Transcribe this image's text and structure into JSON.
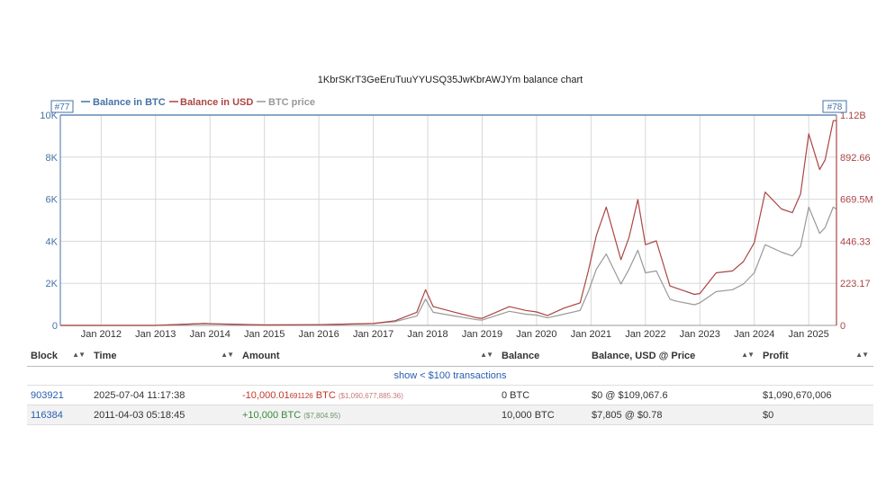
{
  "chart_data": {
    "type": "line",
    "title": "1KbrSKrT3GeEruTuuYYUSQ35JwKbrAWJYm balance chart",
    "legend": [
      "Balance in BTC",
      "Balance in USD",
      "BTC price"
    ],
    "legend_placement": "top-left",
    "grid": true,
    "x_ticks": [
      "Jan 2012",
      "Jan 2013",
      "Jan 2014",
      "Jan 2015",
      "Jan 2016",
      "Jan 2017",
      "Jan 2018",
      "Jan 2019",
      "Jan 2020",
      "Jan 2021",
      "Jan 2022",
      "Jan 2023",
      "Jan 2024",
      "Jan 2025"
    ],
    "y_left_ticks": [
      "0",
      "2K",
      "4K",
      "6K",
      "8K",
      "10K"
    ],
    "y_right_ticks": [
      "0",
      "223.17",
      "446.33",
      "669.5M",
      "892.66",
      "1.12B"
    ],
    "ylim_left": [
      0,
      10000
    ],
    "ylim_right": [
      0,
      1120000000
    ],
    "markers": {
      "start": "#77",
      "end": "#78"
    },
    "colors": {
      "btc": "#4572a7",
      "usd": "#aa4643",
      "price": "#999999"
    },
    "series": [
      {
        "name": "Balance in BTC",
        "axis": "left",
        "x": [
          2011.25,
          2025.51
        ],
        "y": [
          10000,
          10000
        ]
      },
      {
        "name": "Balance in USD",
        "axis": "right",
        "x": [
          2011.25,
          2013.0,
          2013.9,
          2014.1,
          2015.0,
          2016.0,
          2017.0,
          2017.4,
          2017.8,
          2017.96,
          2018.1,
          2018.5,
          2018.9,
          2019.0,
          2019.5,
          2019.8,
          2020.0,
          2020.2,
          2020.5,
          2020.8,
          2020.95,
          2021.1,
          2021.28,
          2021.55,
          2021.7,
          2021.86,
          2022.0,
          2022.2,
          2022.45,
          2022.55,
          2022.9,
          2023.0,
          2023.3,
          2023.6,
          2023.8,
          2024.0,
          2024.2,
          2024.5,
          2024.7,
          2024.85,
          2025.0,
          2025.2,
          2025.3,
          2025.45,
          2025.51
        ],
        "y": [
          7805,
          130000,
          10000000,
          8000000,
          2500000,
          4000000,
          10000000,
          25000000,
          70000000,
          190000000,
          100000000,
          70000000,
          40000000,
          38000000,
          100000000,
          80000000,
          72000000,
          52000000,
          92000000,
          120000000,
          290000000,
          480000000,
          630000000,
          350000000,
          470000000,
          670000000,
          430000000,
          450000000,
          210000000,
          200000000,
          165000000,
          170000000,
          280000000,
          290000000,
          340000000,
          440000000,
          710000000,
          620000000,
          600000000,
          700000000,
          1020000000,
          830000000,
          880000000,
          1090000000,
          1090677885
        ]
      },
      {
        "name": "BTC price",
        "axis": "right",
        "x": [
          2011.25,
          2013.0,
          2013.9,
          2014.1,
          2015.0,
          2016.0,
          2017.0,
          2017.4,
          2017.8,
          2017.96,
          2018.1,
          2018.5,
          2018.9,
          2019.0,
          2019.5,
          2019.8,
          2020.0,
          2020.2,
          2020.5,
          2020.8,
          2020.95,
          2021.1,
          2021.28,
          2021.55,
          2021.7,
          2021.86,
          2022.0,
          2022.2,
          2022.45,
          2022.55,
          2022.9,
          2023.0,
          2023.3,
          2023.6,
          2023.8,
          2024.0,
          2024.2,
          2024.5,
          2024.7,
          2024.85,
          2025.0,
          2025.2,
          2025.3,
          2025.45,
          2025.51
        ],
        "y": [
          7805,
          130000,
          10000000,
          8000000,
          2500000,
          4000000,
          10000000,
          20000000,
          50000000,
          140000000,
          70000000,
          50000000,
          30000000,
          28000000,
          75000000,
          60000000,
          55000000,
          40000000,
          60000000,
          80000000,
          180000000,
          300000000,
          380000000,
          220000000,
          300000000,
          400000000,
          280000000,
          290000000,
          140000000,
          130000000,
          110000000,
          120000000,
          180000000,
          190000000,
          220000000,
          280000000,
          430000000,
          390000000,
          370000000,
          420000000,
          630000000,
          490000000,
          520000000,
          630000000,
          620000000
        ]
      }
    ]
  },
  "table": {
    "headers": [
      "Block",
      "Time",
      "Amount",
      "Balance",
      "Balance, USD @ Price",
      "Profit"
    ],
    "sort_glyph": "▲▼",
    "show_link": "show < $100 transactions",
    "rows": [
      {
        "block": "903921",
        "time": "2025-07-04 11:17:38",
        "amount_main": "-10,000.01",
        "amount_small": "691126",
        "amount_unit": " BTC",
        "amount_usd": "($1,090,677,885.36)",
        "balance": "0 BTC",
        "balance_usd": "$0 @ $109,067.6",
        "profit": "$1,090,670,006"
      },
      {
        "block": "116384",
        "time": "2011-04-03 05:18:45",
        "amount_main": "+10,000",
        "amount_small": "",
        "amount_unit": " BTC",
        "amount_usd": "($7,804.95)",
        "balance": "10,000 BTC",
        "balance_usd": "$7,805 @ $0.78",
        "profit": "$0"
      }
    ]
  }
}
